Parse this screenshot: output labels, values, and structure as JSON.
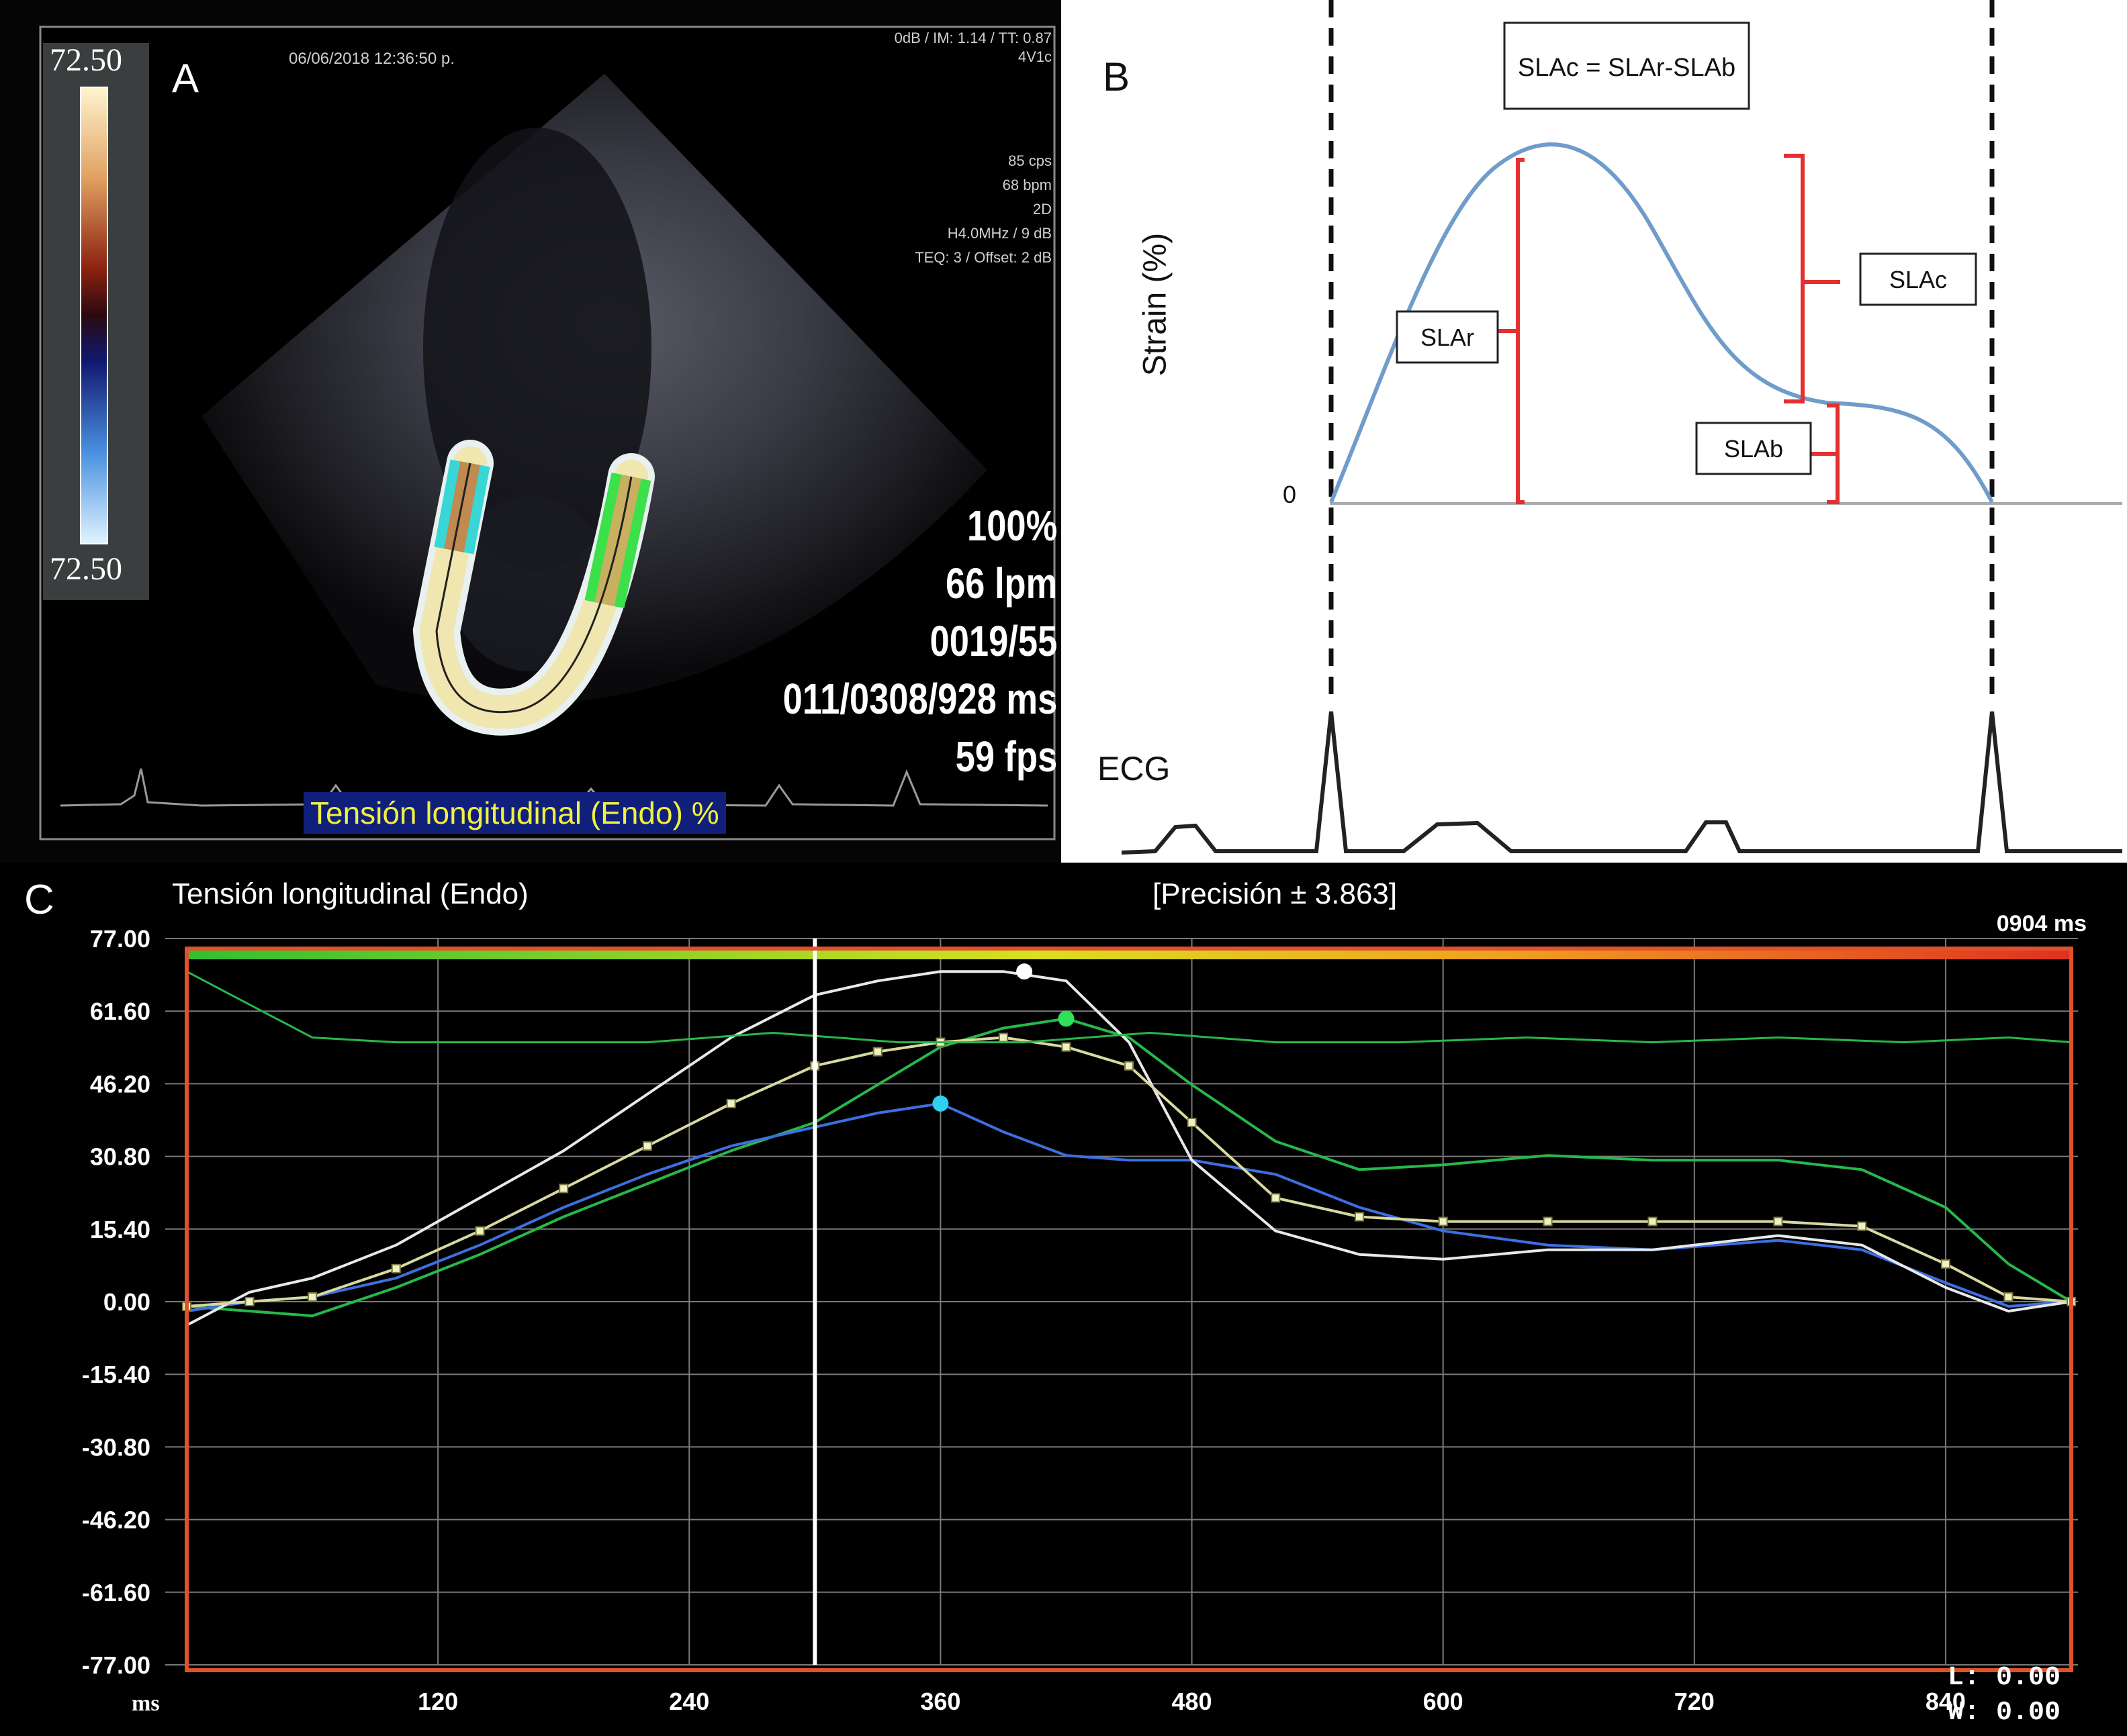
{
  "panelA": {
    "label": "A",
    "timestamp": "06/06/2018 12:36:50 p.",
    "header_info": "0dB / IM: 1.14 / TT: 0.87",
    "probe": "4V1c",
    "settings": [
      "85 cps",
      "68 bpm",
      "2D",
      "H4.0MHz / 9 dB",
      "TEQ: 3 / Offset: 2 dB"
    ],
    "scale_top": "72.50",
    "scale_bottom": "72.50",
    "readouts": [
      "100%",
      "66 lpm",
      "0019/55",
      "011/0308/928 ms",
      "59 fps"
    ],
    "caption": "Tensión longitudinal (Endo) %"
  },
  "panelB": {
    "label": "B",
    "formula": "SLAc = SLAr-SLAb",
    "ylabel": "Strain (%)",
    "zero_label": "0",
    "annotations": [
      "SLAr",
      "SLAc",
      "SLAb"
    ],
    "ecg_label": "ECG"
  },
  "panelC": {
    "label": "C",
    "title": "Tensión longitudinal (Endo)",
    "precision": "[Precisión ± 3.863]",
    "time_readout": "0904 ms",
    "x_unit": "ms",
    "readout_L": "L: 0.00",
    "readout_W": "W: 0.00",
    "colors": {
      "green": "#27b84a",
      "blue": "#3d6fe0",
      "white": "#e8e8e8",
      "yellow": "#d8d8a0",
      "frame": "#e0522a"
    }
  },
  "chart_data": {
    "type": "line",
    "title": "Tensión longitudinal (Endo)",
    "xlabel": "ms",
    "ylabel": "",
    "xlim": [
      0,
      900
    ],
    "ylim": [
      -77,
      77
    ],
    "x_ticks": [
      120,
      240,
      360,
      480,
      600,
      720,
      840
    ],
    "y_ticks": [
      "77.00",
      "61.60",
      "46.20",
      "30.80",
      "15.40",
      "0.00",
      "-15.40",
      "-30.80",
      "-46.20",
      "-61.60",
      "-77.00"
    ],
    "cursor_x": 300,
    "series": [
      {
        "color": "#27b84a",
        "x": [
          0,
          30,
          60,
          100,
          140,
          180,
          220,
          260,
          300,
          330,
          360,
          390,
          420,
          450,
          480,
          520,
          560,
          600,
          650,
          700,
          760,
          800,
          840,
          870,
          900
        ],
        "values": [
          -1,
          -2,
          -3,
          3,
          10,
          18,
          25,
          32,
          38,
          46,
          54,
          58,
          60,
          56,
          46,
          34,
          28,
          29,
          31,
          30,
          30,
          28,
          20,
          8,
          0
        ]
      },
      {
        "color": "#3d6fe0",
        "x": [
          0,
          30,
          60,
          100,
          140,
          180,
          220,
          260,
          300,
          330,
          360,
          390,
          420,
          450,
          480,
          520,
          560,
          600,
          650,
          700,
          760,
          800,
          840,
          870,
          900
        ],
        "values": [
          -2,
          0,
          1,
          5,
          12,
          20,
          27,
          33,
          37,
          40,
          42,
          36,
          31,
          30,
          30,
          27,
          20,
          15,
          12,
          11,
          13,
          11,
          4,
          -1,
          0
        ]
      },
      {
        "color": "#e8e8e8",
        "x": [
          0,
          30,
          60,
          100,
          140,
          180,
          220,
          260,
          300,
          330,
          360,
          390,
          420,
          450,
          480,
          520,
          560,
          600,
          650,
          700,
          760,
          800,
          840,
          870,
          900
        ],
        "values": [
          -5,
          2,
          5,
          12,
          22,
          32,
          44,
          56,
          65,
          68,
          70,
          70,
          68,
          55,
          30,
          15,
          10,
          9,
          11,
          11,
          14,
          12,
          3,
          -2,
          0
        ]
      },
      {
        "color": "#d8d8a0",
        "x": [
          0,
          30,
          60,
          100,
          140,
          180,
          220,
          260,
          300,
          330,
          360,
          390,
          420,
          450,
          480,
          520,
          560,
          600,
          650,
          700,
          760,
          800,
          840,
          870,
          900
        ],
        "values": [
          -1,
          0,
          1,
          7,
          15,
          24,
          33,
          42,
          50,
          53,
          55,
          56,
          54,
          50,
          38,
          22,
          18,
          17,
          17,
          17,
          17,
          16,
          8,
          1,
          0
        ]
      },
      {
        "color": "#27b84a",
        "x": [
          0,
          30,
          60,
          100,
          160,
          220,
          280,
          340,
          400,
          460,
          520,
          580,
          640,
          700,
          760,
          820,
          870,
          900
        ],
        "values": [
          70,
          63,
          56,
          55,
          55,
          55,
          57,
          55,
          55,
          57,
          55,
          55,
          56,
          55,
          56,
          55,
          56,
          55
        ]
      }
    ]
  }
}
